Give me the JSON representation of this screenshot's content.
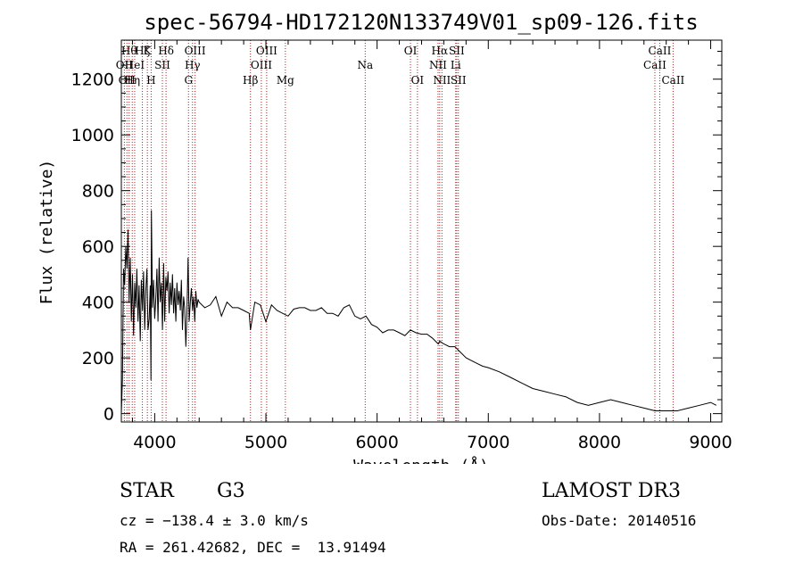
{
  "chart_data": {
    "type": "line",
    "title": "spec-56794-HD172120N133749V01_sp09-126.fits",
    "xlabel": "Wavelength (Å)",
    "ylabel": "Flux (relative)",
    "xlim": [
      3700,
      9100
    ],
    "ylim": [
      -30,
      1340
    ],
    "xticks": [
      4000,
      5000,
      6000,
      7000,
      8000,
      9000
    ],
    "yticks": [
      0,
      200,
      400,
      600,
      800,
      1000,
      1200
    ],
    "series": [
      {
        "name": "spectrum",
        "x": [
          3700,
          3710,
          3720,
          3730,
          3740,
          3750,
          3760,
          3770,
          3780,
          3790,
          3800,
          3810,
          3820,
          3830,
          3840,
          3850,
          3860,
          3870,
          3880,
          3890,
          3900,
          3910,
          3920,
          3930,
          3940,
          3950,
          3960,
          3966,
          3970,
          3980,
          3990,
          4000,
          4010,
          4020,
          4030,
          4040,
          4050,
          4060,
          4070,
          4080,
          4090,
          4100,
          4110,
          4120,
          4130,
          4140,
          4150,
          4160,
          4170,
          4180,
          4190,
          4200,
          4210,
          4220,
          4230,
          4240,
          4250,
          4260,
          4270,
          4280,
          4290,
          4300,
          4310,
          4320,
          4330,
          4340,
          4350,
          4360,
          4370,
          4380,
          4390,
          4400,
          4450,
          4500,
          4550,
          4600,
          4650,
          4700,
          4750,
          4800,
          4850,
          4861,
          4900,
          4950,
          5000,
          5050,
          5100,
          5150,
          5200,
          5250,
          5300,
          5350,
          5400,
          5450,
          5500,
          5550,
          5600,
          5650,
          5700,
          5750,
          5800,
          5850,
          5900,
          5950,
          6000,
          6050,
          6100,
          6150,
          6200,
          6250,
          6300,
          6350,
          6400,
          6450,
          6500,
          6550,
          6563,
          6600,
          6650,
          6700,
          6750,
          6800,
          6850,
          6900,
          6950,
          7000,
          7100,
          7200,
          7300,
          7400,
          7500,
          7600,
          7700,
          7800,
          7900,
          8000,
          8100,
          8200,
          8300,
          8400,
          8500,
          8600,
          8700,
          8800,
          8900,
          9000,
          9050
        ],
        "y": [
          0,
          120,
          520,
          460,
          600,
          520,
          660,
          400,
          560,
          330,
          500,
          280,
          470,
          380,
          520,
          330,
          460,
          260,
          480,
          370,
          510,
          300,
          440,
          520,
          300,
          340,
          460,
          120,
          730,
          380,
          480,
          340,
          410,
          520,
          330,
          560,
          400,
          470,
          300,
          540,
          330,
          490,
          440,
          510,
          360,
          470,
          390,
          500,
          360,
          450,
          330,
          470,
          390,
          440,
          370,
          480,
          300,
          420,
          380,
          240,
          360,
          560,
          330,
          400,
          450,
          370,
          420,
          330,
          440,
          380,
          410,
          400,
          380,
          390,
          420,
          350,
          400,
          380,
          380,
          370,
          360,
          300,
          400,
          390,
          330,
          390,
          370,
          360,
          350,
          375,
          380,
          380,
          370,
          370,
          380,
          360,
          360,
          350,
          380,
          390,
          350,
          340,
          350,
          320,
          310,
          290,
          300,
          300,
          290,
          280,
          300,
          290,
          285,
          285,
          270,
          250,
          260,
          250,
          240,
          240,
          220,
          200,
          190,
          180,
          170,
          165,
          150,
          130,
          110,
          90,
          80,
          70,
          60,
          40,
          30,
          40,
          50,
          40,
          30,
          20,
          10,
          10,
          10,
          20,
          30,
          40,
          30
        ]
      }
    ],
    "line_markers": [
      {
        "wl": 3727,
        "label": "OII",
        "row": 2
      },
      {
        "wl": 3750,
        "label": "OII",
        "row": 3
      },
      {
        "wl": 3770,
        "label": "Hθ",
        "row": 1
      },
      {
        "wl": 3798,
        "label": "Hη",
        "row": 3
      },
      {
        "wl": 3820,
        "label": "HeI",
        "row": 2
      },
      {
        "wl": 3889,
        "label": "Hζ",
        "row": 1
      },
      {
        "wl": 3934,
        "label": "K",
        "row": 1
      },
      {
        "wl": 3968,
        "label": "H",
        "row": 3
      },
      {
        "wl": 4069,
        "label": "SII",
        "row": 2
      },
      {
        "wl": 4102,
        "label": "Hδ",
        "row": 1
      },
      {
        "wl": 4304,
        "label": "G",
        "row": 3
      },
      {
        "wl": 4340,
        "label": "Hγ",
        "row": 2
      },
      {
        "wl": 4363,
        "label": "OIII",
        "row": 1
      },
      {
        "wl": 4861,
        "label": "Hβ",
        "row": 3
      },
      {
        "wl": 4959,
        "label": "OIII",
        "row": 2
      },
      {
        "wl": 5007,
        "label": "OIII",
        "row": 1
      },
      {
        "wl": 5175,
        "label": "Mg",
        "row": 3
      },
      {
        "wl": 5893,
        "label": "Na",
        "row": 2
      },
      {
        "wl": 6300,
        "label": "OI",
        "row": 1
      },
      {
        "wl": 6363,
        "label": "OI",
        "row": 3
      },
      {
        "wl": 6548,
        "label": "NII",
        "row": 2
      },
      {
        "wl": 6563,
        "label": "Hα",
        "row": 1
      },
      {
        "wl": 6583,
        "label": "NII",
        "row": 3
      },
      {
        "wl": 6707,
        "label": "Li",
        "row": 2
      },
      {
        "wl": 6716,
        "label": "SII",
        "row": 1
      },
      {
        "wl": 6731,
        "label": "SII",
        "row": 3
      },
      {
        "wl": 8498,
        "label": "CaII",
        "row": 2
      },
      {
        "wl": 8542,
        "label": "CaII",
        "row": 1
      },
      {
        "wl": 8662,
        "label": "CaII",
        "row": 3
      }
    ]
  },
  "info": {
    "object_type": "STAR",
    "subclass": "G3",
    "survey": "LAMOST DR3",
    "cz": "cz = −138.4 ± 3.0 km/s",
    "obs_date": "Obs-Date: 20140516",
    "coords": "RA = 261.42682, DEC =  13.91494"
  },
  "colors": {
    "marker": "#b22222",
    "spectrum": "#000000"
  }
}
